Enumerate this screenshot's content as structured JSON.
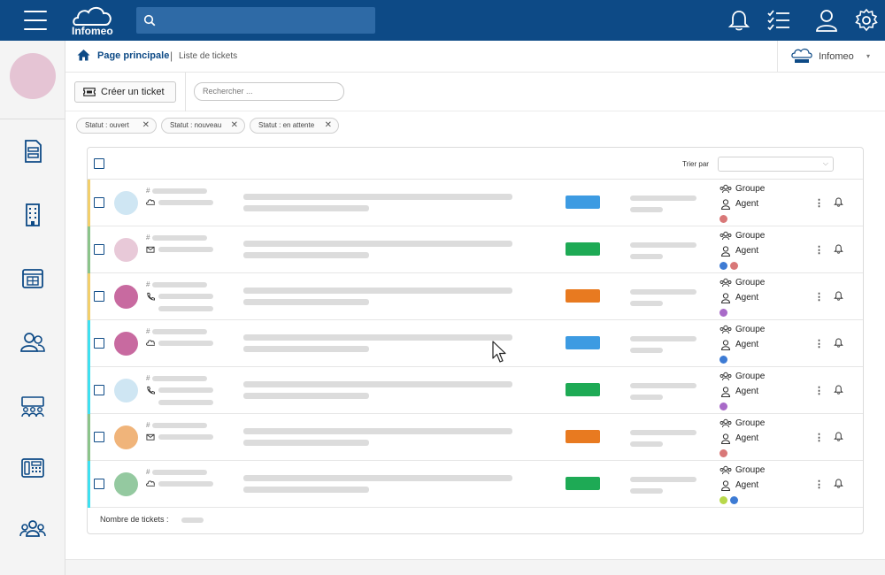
{
  "topbar": {
    "logo_text": "Infomeo",
    "search_placeholder": "",
    "icons": [
      "menu-icon",
      "notifications-icon",
      "tasks-icon",
      "user-icon",
      "settings-icon"
    ]
  },
  "sidebar": {
    "icons": [
      "documents-icon",
      "building-icon",
      "calculator-icon",
      "contacts-icon",
      "teams-icon",
      "phone-icon",
      "groups-icon"
    ]
  },
  "breadcrumb": {
    "home": "Page principale",
    "separator": "|",
    "current": "Liste de tickets"
  },
  "organization": {
    "name": "Infomeo",
    "caret": "▾"
  },
  "toolbar": {
    "create_button": "Créer un ticket",
    "search_placeholder": "Rechercher ..."
  },
  "filters": [
    {
      "label": "Statut : ouvert",
      "remove": "✕"
    },
    {
      "label": "Statut : nouveau",
      "remove": "✕"
    },
    {
      "label": "Statut : en attente",
      "remove": "✕"
    }
  ],
  "table": {
    "sort_label": "Trier par",
    "sort_value": "",
    "footer_label": "Nombre de tickets :",
    "rows": [
      {
        "hash": "#",
        "accent": "#f2cf6b",
        "avatar": "#cfe6f3",
        "channel": "cloud-icon",
        "tag": "#3d9be2",
        "group": "Groupe",
        "agent": "Agent",
        "dots": [
          "#d97878"
        ]
      },
      {
        "hash": "#",
        "accent": "#8bc48a",
        "avatar": "#e8c9d8",
        "channel": "mail-icon",
        "tag": "#1eaa55",
        "group": "Groupe",
        "agent": "Agent",
        "dots": [
          "#3d7bd4",
          "#d97878"
        ]
      },
      {
        "hash": "#",
        "accent": "#f2cf6b",
        "avatar": "#c86aa0",
        "channel": "phone-icon",
        "tag": "#e87a20",
        "group": "Groupe",
        "agent": "Agent",
        "dots": [
          "#a86ac8"
        ]
      },
      {
        "hash": "#",
        "accent": "#3ee0f0",
        "avatar": "#c86aa0",
        "channel": "cloud-icon",
        "tag": "#3d9be2",
        "group": "Groupe",
        "agent": "Agent",
        "dots": [
          "#3d7bd4"
        ]
      },
      {
        "hash": "#",
        "accent": "#3ee0f0",
        "avatar": "#cfe6f3",
        "channel": "phone-icon",
        "tag": "#1eaa55",
        "group": "Groupe",
        "agent": "Agent",
        "dots": [
          "#a86ac8"
        ]
      },
      {
        "hash": "#",
        "accent": "#8bc48a",
        "avatar": "#f0b47a",
        "channel": "mail-icon",
        "tag": "#e87a20",
        "group": "Groupe",
        "agent": "Agent",
        "dots": [
          "#d97878"
        ]
      },
      {
        "hash": "#",
        "accent": "#3ee0f0",
        "avatar": "#94c9a0",
        "channel": "cloud-icon",
        "tag": "#1eaa55",
        "group": "Groupe",
        "agent": "Agent",
        "dots": [
          "#b8d84a",
          "#3d7bd4"
        ]
      }
    ]
  }
}
